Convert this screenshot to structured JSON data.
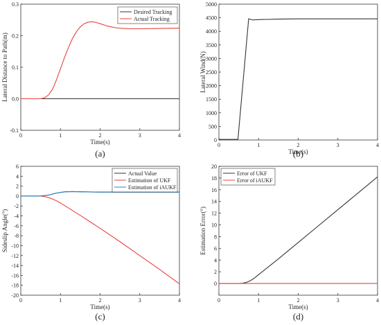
{
  "chart_data": [
    {
      "type": "line",
      "panel_label": "(a)",
      "xlabel": "Time(s)",
      "ylabel": "Lateral Distance to Path(m)",
      "xlim": [
        0,
        4
      ],
      "ylim": [
        -0.1,
        0.3
      ],
      "xticks": [
        "0",
        "1",
        "2",
        "3",
        "4"
      ],
      "yticks": [
        "-0.1",
        "0.0",
        "0.1",
        "0.2",
        "0.3"
      ],
      "legend_position": "top-right",
      "series": [
        {
          "name": "Desired Tracking",
          "color": "#333333",
          "x": [
            0,
            4
          ],
          "y": [
            0,
            0
          ]
        },
        {
          "name": "Actual Tracking",
          "color": "#e8413c",
          "x": [
            0,
            0.5,
            0.6,
            0.7,
            0.8,
            0.9,
            1.0,
            1.1,
            1.2,
            1.3,
            1.4,
            1.5,
            1.6,
            1.7,
            1.8,
            1.9,
            2.0,
            2.2,
            2.4,
            2.6,
            2.8,
            3.0,
            3.5,
            4.0
          ],
          "y": [
            0,
            0,
            0.003,
            0.012,
            0.03,
            0.06,
            0.095,
            0.13,
            0.162,
            0.19,
            0.212,
            0.228,
            0.238,
            0.243,
            0.244,
            0.242,
            0.238,
            0.23,
            0.225,
            0.223,
            0.222,
            0.222,
            0.223,
            0.224
          ]
        }
      ]
    },
    {
      "type": "line",
      "panel_label": "(b)",
      "xlabel": "Time(s)",
      "ylabel": "Lateral Wind(N)",
      "xlim": [
        0,
        4
      ],
      "ylim": [
        0,
        5000
      ],
      "xticks": [
        "0",
        "1",
        "2",
        "3",
        "4"
      ],
      "yticks": [
        "0",
        "500",
        "1000",
        "1500",
        "2000",
        "2500",
        "3000",
        "3500",
        "4000",
        "4500",
        "5000"
      ],
      "series": [
        {
          "color": "#333333",
          "x": [
            0,
            0.48,
            0.75,
            0.85,
            1.0,
            1.5,
            2.0,
            3.0,
            4.0
          ],
          "y": [
            20,
            20,
            4460,
            4420,
            4430,
            4450,
            4460,
            4460,
            4460
          ]
        }
      ]
    },
    {
      "type": "line",
      "panel_label": "(c)",
      "xlabel": "Time(s)",
      "ylabel": "Sideslip Angle(°)",
      "xlim": [
        0,
        4
      ],
      "ylim": [
        -20,
        6
      ],
      "xticks": [
        "0",
        "1",
        "2",
        "3",
        "4"
      ],
      "yticks": [
        "-20",
        "-18",
        "-16",
        "-14",
        "-12",
        "-10",
        "-8",
        "-6",
        "-4",
        "-2",
        "0",
        "2",
        "4",
        "6"
      ],
      "legend_position": "top-right",
      "series": [
        {
          "name": "Actual Value",
          "color": "#333333",
          "x": [
            0,
            0.5,
            0.7,
            0.9,
            1.1,
            1.3,
            1.6,
            2.0,
            3.0,
            4.0
          ],
          "y": [
            0,
            0,
            0.2,
            0.6,
            0.85,
            0.9,
            0.85,
            0.8,
            0.8,
            0.8
          ]
        },
        {
          "name": "Estimation of UKF",
          "color": "#e8413c",
          "x": [
            0,
            0.5,
            0.6,
            0.7,
            0.8,
            0.9,
            1.0,
            1.2,
            1.5,
            2.0,
            2.5,
            3.0,
            3.5,
            4.0
          ],
          "y": [
            0,
            0,
            -0.1,
            -0.3,
            -0.6,
            -0.95,
            -1.4,
            -2.4,
            -3.9,
            -6.5,
            -9.2,
            -12.0,
            -14.8,
            -17.7
          ]
        },
        {
          "name": "Estimation of iAUKF",
          "color": "#2f7fc1",
          "x": [
            0,
            0.5,
            0.7,
            0.9,
            1.1,
            1.3,
            1.6,
            2.0,
            3.0,
            4.0
          ],
          "y": [
            0,
            0,
            0.2,
            0.6,
            0.85,
            0.9,
            0.85,
            0.8,
            0.8,
            0.8
          ]
        }
      ]
    },
    {
      "type": "line",
      "panel_label": "(d)",
      "xlabel": "Time(s)",
      "ylabel": "Estimation Error(°)",
      "xlim": [
        0,
        4
      ],
      "ylim": [
        -2,
        20
      ],
      "xticks": [
        "0",
        "1",
        "2",
        "3",
        "4"
      ],
      "yticks": [
        "0",
        "2",
        "4",
        "6",
        "8",
        "10",
        "12",
        "14",
        "16",
        "18",
        "20"
      ],
      "legend_position": "top-left",
      "series": [
        {
          "name": "Error of UKF",
          "color": "#333333",
          "x": [
            0,
            0.5,
            0.6,
            0.7,
            0.8,
            0.9,
            1.0,
            1.5,
            2.0,
            2.5,
            3.0,
            3.5,
            4.0
          ],
          "y": [
            0,
            0,
            0.05,
            0.2,
            0.5,
            0.95,
            1.5,
            4.2,
            7.0,
            9.8,
            12.6,
            15.4,
            18.2
          ]
        },
        {
          "name": "Error of iAUKF",
          "color": "#e8413c",
          "x": [
            0,
            4
          ],
          "y": [
            0,
            0
          ]
        }
      ]
    }
  ]
}
